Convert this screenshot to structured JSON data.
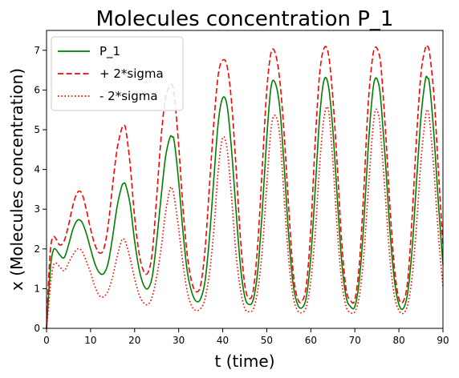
{
  "chart_data": {
    "type": "line",
    "title": "Molecules concentration P_1",
    "xlabel": "t (time)",
    "ylabel": "x (Molecules concentration)",
    "xlim": [
      0,
      90
    ],
    "ylim": [
      0,
      7.5
    ],
    "xticks": [
      0,
      10,
      20,
      30,
      40,
      50,
      60,
      70,
      80,
      90
    ],
    "yticks": [
      0,
      1,
      2,
      3,
      4,
      5,
      6,
      7
    ],
    "grid": false,
    "legend_position": "top-left",
    "series": [
      {
        "name": "P_1",
        "color": "#008000",
        "style": "solid",
        "x": [
          0,
          0.5,
          1,
          1.5,
          2,
          3,
          4,
          5,
          6,
          7,
          8,
          9,
          10,
          11,
          12,
          13,
          14,
          15,
          16,
          17,
          17.5,
          18,
          19,
          20,
          21,
          22,
          23,
          24,
          25,
          26,
          27,
          28,
          28.5,
          29,
          30,
          31,
          32,
          33,
          34,
          35,
          36,
          37,
          38,
          39,
          40,
          41,
          42,
          43,
          44,
          45,
          46,
          47,
          48,
          49,
          50,
          51,
          52,
          53,
          54,
          55,
          56,
          57,
          58,
          59,
          60,
          61,
          62,
          63,
          64,
          65,
          66,
          67,
          68,
          69,
          70,
          71,
          72,
          73,
          74,
          74.7,
          75.5,
          76,
          77,
          78,
          79,
          80,
          81,
          82,
          83,
          84,
          85,
          86,
          86.5,
          87,
          88,
          89,
          90
        ],
        "values": [
          0,
          0.9,
          1.65,
          1.95,
          2.0,
          1.85,
          1.78,
          2.1,
          2.5,
          2.72,
          2.68,
          2.4,
          2.0,
          1.62,
          1.4,
          1.38,
          1.65,
          2.3,
          3.05,
          3.55,
          3.65,
          3.6,
          3.1,
          2.2,
          1.5,
          1.1,
          1.0,
          1.3,
          2.2,
          3.3,
          4.3,
          4.8,
          4.82,
          4.7,
          3.7,
          2.4,
          1.4,
          0.9,
          0.68,
          0.75,
          1.2,
          2.3,
          3.8,
          5.2,
          5.8,
          5.6,
          4.5,
          3.0,
          1.6,
          0.8,
          0.6,
          0.75,
          1.5,
          3.0,
          4.8,
          6.1,
          6.15,
          5.5,
          4.0,
          2.3,
          1.1,
          0.6,
          0.52,
          0.8,
          1.8,
          3.5,
          5.3,
          6.25,
          6.1,
          5.0,
          3.3,
          1.7,
          0.8,
          0.55,
          0.55,
          1.2,
          2.6,
          4.5,
          5.9,
          6.3,
          6.1,
          5.6,
          4.1,
          2.4,
          1.2,
          0.6,
          0.5,
          0.9,
          2.0,
          3.7,
          5.3,
          6.25,
          6.3,
          6.1,
          4.8,
          3.1,
          1.6
        ]
      },
      {
        "name": "+ 2*sigma",
        "color": "#ff0000",
        "style": "dashed",
        "x": [
          0,
          0.5,
          1,
          1.5,
          2,
          3,
          4,
          5,
          6,
          7,
          8,
          9,
          10,
          11,
          12,
          13,
          14,
          15,
          16,
          17,
          17.5,
          18,
          19,
          20,
          21,
          22,
          23,
          24,
          25,
          26,
          27,
          28,
          28.5,
          29,
          30,
          31,
          32,
          33,
          34,
          35,
          36,
          37,
          38,
          39,
          40,
          41,
          42,
          43,
          44,
          45,
          46,
          47,
          48,
          49,
          50,
          51,
          52,
          53,
          54,
          55,
          56,
          57,
          58,
          59,
          60,
          61,
          62,
          63,
          64,
          65,
          66,
          67,
          68,
          69,
          70,
          71,
          72,
          73,
          74,
          74.7,
          75.5,
          76,
          77,
          78,
          79,
          80,
          81,
          82,
          83,
          84,
          85,
          86,
          86.5,
          87,
          88,
          89,
          90
        ],
        "values": [
          0,
          1.3,
          2.1,
          2.3,
          2.28,
          2.1,
          2.2,
          2.6,
          3.1,
          3.42,
          3.4,
          3.0,
          2.5,
          2.1,
          1.9,
          2.0,
          2.6,
          3.6,
          4.5,
          5.0,
          5.1,
          5.0,
          4.1,
          2.8,
          1.9,
          1.45,
          1.4,
          1.9,
          3.3,
          4.8,
          5.8,
          6.1,
          6.12,
          5.9,
          4.6,
          3.0,
          1.8,
          1.15,
          0.92,
          1.1,
          2.0,
          3.6,
          5.2,
          6.4,
          6.75,
          6.6,
          5.7,
          4.1,
          2.3,
          1.1,
          0.75,
          1.0,
          2.2,
          4.1,
          6.0,
          6.95,
          6.9,
          6.2,
          4.8,
          3.0,
          1.4,
          0.75,
          0.68,
          1.1,
          2.5,
          4.7,
          6.4,
          7.05,
          6.9,
          5.8,
          4.1,
          2.2,
          1.0,
          0.7,
          0.72,
          1.6,
          3.4,
          5.6,
          6.8,
          7.08,
          6.9,
          6.5,
          4.9,
          3.0,
          1.5,
          0.75,
          0.68,
          1.2,
          2.8,
          4.8,
          6.4,
          7.05,
          7.1,
          6.9,
          5.8,
          3.9,
          2.1
        ]
      },
      {
        "name": "- 2*sigma",
        "color": "#ff0000",
        "style": "dotted",
        "x": [
          0,
          0.5,
          1,
          1.5,
          2,
          3,
          4,
          5,
          6,
          7,
          8,
          9,
          10,
          11,
          12,
          13,
          14,
          15,
          16,
          17,
          17.5,
          18,
          19,
          20,
          21,
          22,
          23,
          24,
          25,
          26,
          27,
          28,
          28.5,
          29,
          30,
          31,
          32,
          33,
          34,
          35,
          36,
          37,
          38,
          39,
          40,
          41,
          42,
          43,
          44,
          45,
          46,
          47,
          48,
          49,
          50,
          51,
          52,
          53,
          54,
          55,
          56,
          57,
          58,
          59,
          60,
          61,
          62,
          63,
          64,
          65,
          66,
          67,
          68,
          69,
          70,
          71,
          72,
          73,
          74,
          74.7,
          75.5,
          76,
          77,
          78,
          79,
          80,
          81,
          82,
          83,
          84,
          85,
          86,
          86.5,
          87,
          88,
          89,
          90
        ],
        "values": [
          0,
          0.6,
          1.2,
          1.55,
          1.65,
          1.55,
          1.45,
          1.65,
          1.85,
          2.0,
          1.95,
          1.7,
          1.4,
          1.05,
          0.82,
          0.8,
          0.95,
          1.3,
          1.8,
          2.2,
          2.25,
          2.15,
          1.75,
          1.25,
          0.85,
          0.65,
          0.6,
          0.8,
          1.3,
          2.0,
          2.9,
          3.5,
          3.52,
          3.3,
          2.5,
          1.6,
          0.9,
          0.55,
          0.45,
          0.5,
          0.75,
          1.4,
          2.5,
          4.0,
          4.8,
          4.5,
          3.3,
          1.9,
          1.0,
          0.5,
          0.42,
          0.5,
          1.0,
          2.0,
          3.6,
          5.05,
          5.35,
          4.8,
          3.2,
          1.7,
          0.8,
          0.45,
          0.4,
          0.55,
          1.2,
          2.4,
          4.1,
          5.3,
          5.5,
          4.2,
          2.5,
          1.2,
          0.55,
          0.4,
          0.42,
          0.8,
          1.8,
          3.4,
          4.9,
          5.5,
          5.3,
          4.7,
          3.2,
          1.7,
          0.8,
          0.45,
          0.38,
          0.6,
          1.3,
          2.6,
          4.2,
          5.3,
          5.5,
          5.2,
          3.9,
          2.3,
          1.05
        ]
      }
    ]
  }
}
